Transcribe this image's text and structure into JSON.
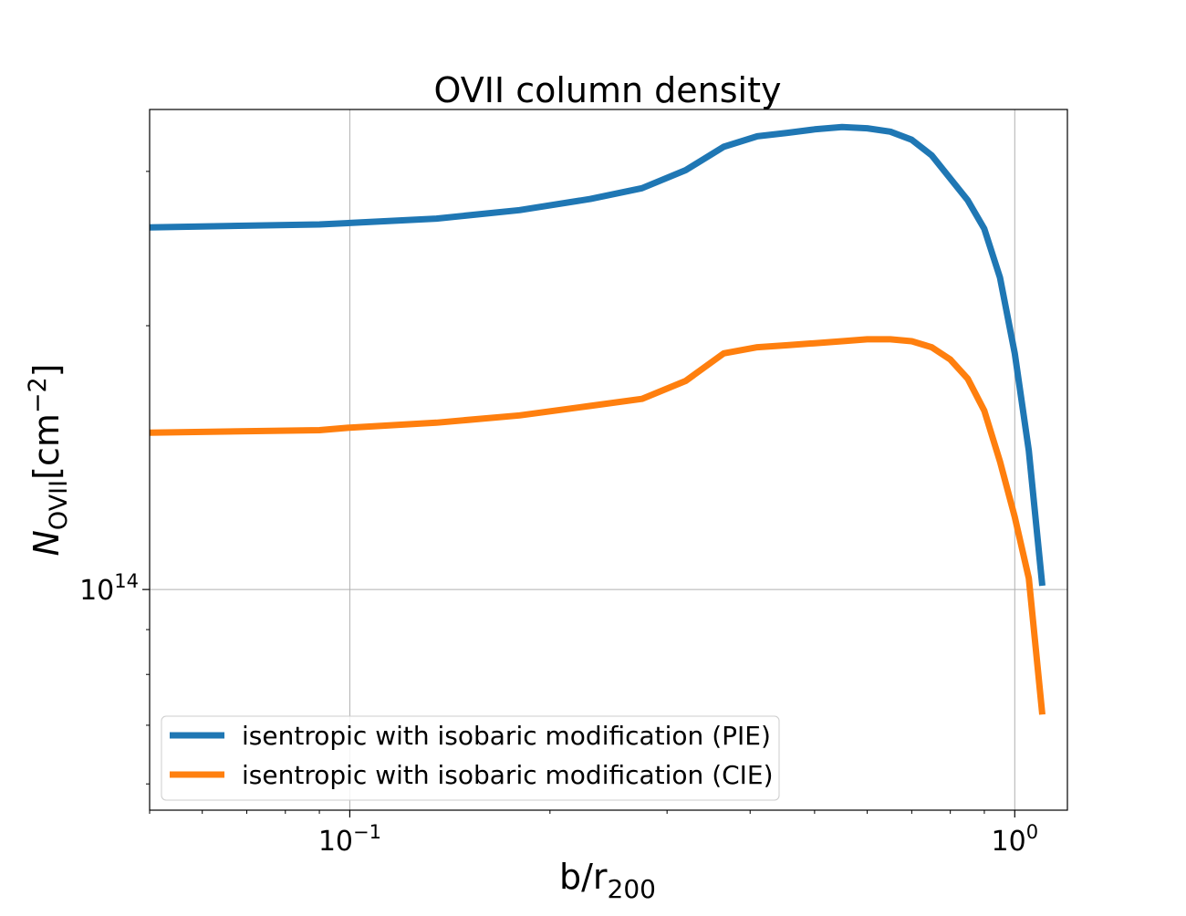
{
  "chart_data": {
    "type": "line",
    "title": "OVII column density",
    "xlabel": {
      "main": "b/r",
      "sub": "200"
    },
    "ylabel": {
      "main": "N",
      "sub": "OVII",
      "unit_open": "[cm",
      "unit_exp": "−2",
      "unit_close": "]"
    },
    "x_scale": "log",
    "y_scale": "log",
    "xlim": [
      0.05,
      1.2
    ],
    "ylim": [
      56000000000000,
      353000000000000
    ],
    "grid": true,
    "legend_position": "lower-left",
    "xticks": [
      {
        "value": 0.1,
        "base": "10",
        "exp": "−1"
      },
      {
        "value": 1.0,
        "base": "10",
        "exp": "0"
      }
    ],
    "yticks": [
      {
        "value": 100000000000000,
        "base": "10",
        "exp": "14"
      }
    ],
    "series": [
      {
        "name": "isentropic with isobaric modification (PIE)",
        "color": "#1f77b4",
        "x": [
          0.05,
          0.09,
          0.1,
          0.135,
          0.18,
          0.23,
          0.275,
          0.32,
          0.365,
          0.41,
          0.455,
          0.5,
          0.55,
          0.6,
          0.65,
          0.7,
          0.75,
          0.85,
          0.9,
          0.95,
          1.0,
          1.05,
          1.1
        ],
        "y": [
          259000000000000,
          261000000000000,
          262000000000000,
          265000000000000,
          271000000000000,
          279000000000000,
          287000000000000,
          301000000000000,
          320000000000000,
          329000000000000,
          332000000000000,
          335000000000000,
          337000000000000,
          336000000000000,
          333000000000000,
          326000000000000,
          313000000000000,
          278000000000000,
          258000000000000,
          227000000000000,
          186000000000000,
          144000000000000,
          101000000000000
        ]
      },
      {
        "name": "isentropic with isobaric modification (CIE)",
        "color": "#ff7f0e",
        "x": [
          0.05,
          0.09,
          0.1,
          0.135,
          0.18,
          0.23,
          0.275,
          0.32,
          0.365,
          0.41,
          0.455,
          0.5,
          0.55,
          0.6,
          0.65,
          0.7,
          0.75,
          0.8,
          0.85,
          0.9,
          0.95,
          1.0,
          1.05,
          1.1
        ],
        "y": [
          151000000000000,
          152000000000000,
          153000000000000,
          155000000000000,
          158000000000000,
          162000000000000,
          165000000000000,
          173000000000000,
          186000000000000,
          189000000000000,
          190000000000000,
          191000000000000,
          192000000000000,
          193000000000000,
          193000000000000,
          192000000000000,
          189000000000000,
          183000000000000,
          174000000000000,
          160000000000000,
          140000000000000,
          121000000000000,
          103000000000000,
          72000000000000
        ]
      }
    ]
  }
}
